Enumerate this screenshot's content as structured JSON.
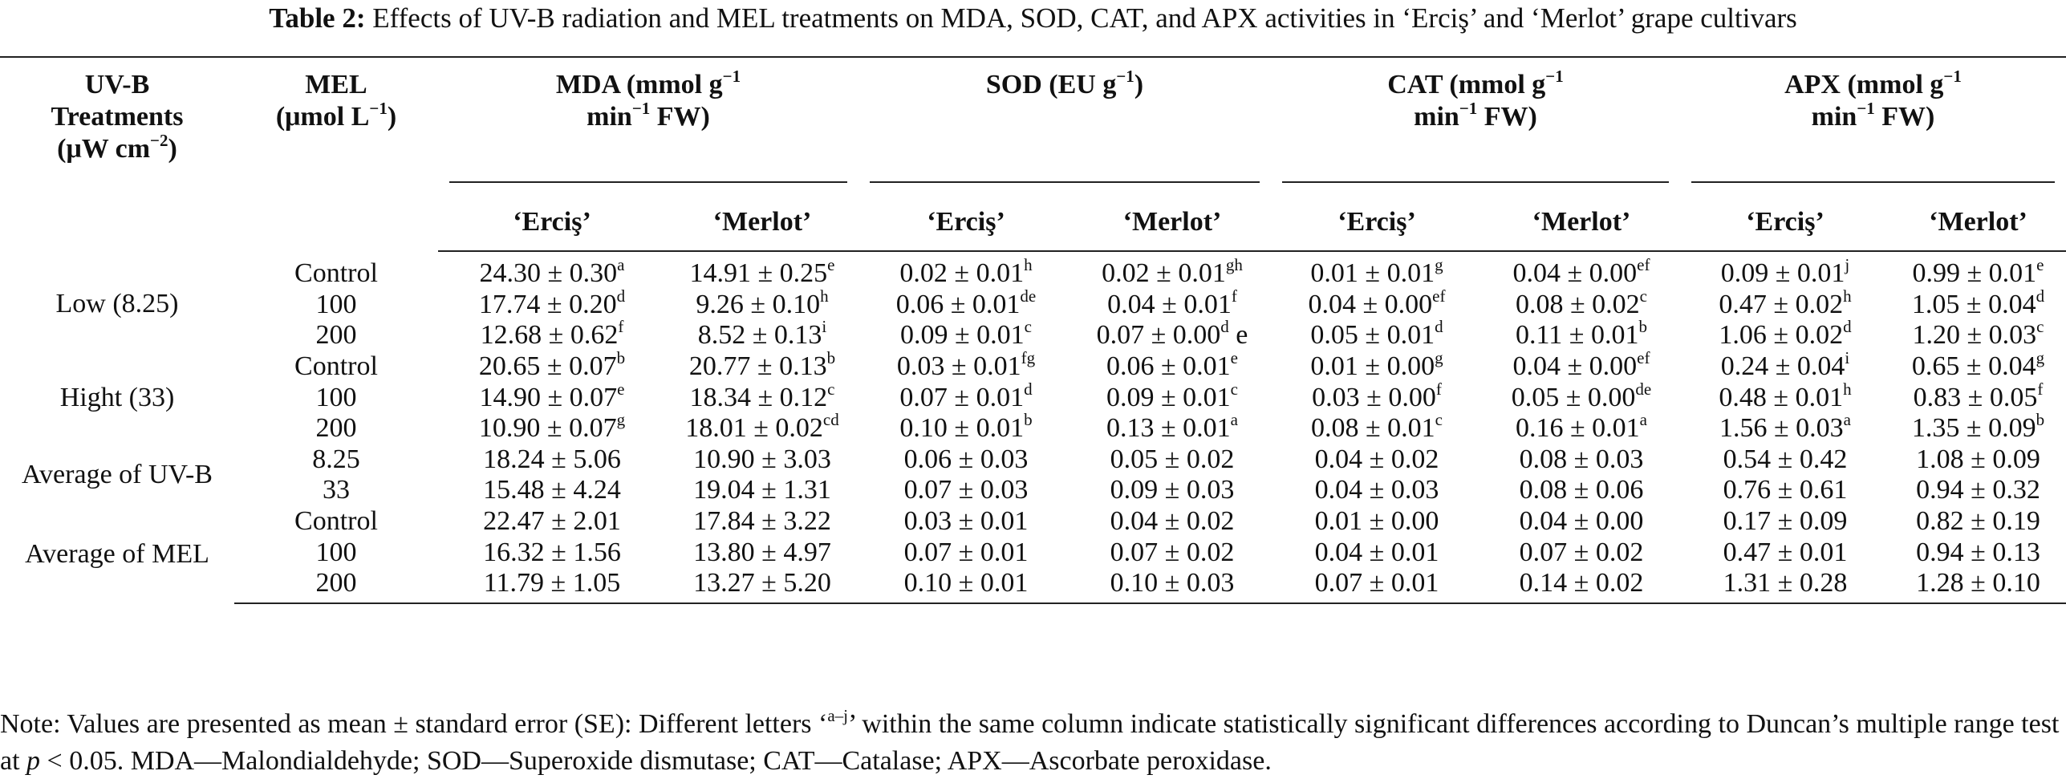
{
  "caption": {
    "label": "Table 2:",
    "text": " Effects of UV-B radiation and MEL treatments on MDA, SOD, CAT, and APX activities in ‘Erciş’ and ‘Merlot’ grape cultivars"
  },
  "headers": {
    "uvb_l1": "UV-B",
    "uvb_l2": "Treatments",
    "uvb_l3": "(μW cm",
    "uvb_sup": "−2",
    "uvb_l3_end": ")",
    "mel_l1": "MEL",
    "mel_l2": "(μmol L",
    "mel_sup": "−1",
    "mel_l2_end": ")",
    "mda_l1": "MDA (mmol g",
    "mda_sup1": "−1",
    "mda_l2": "min",
    "mda_sup2": "−1",
    "mda_l2_end": " FW)",
    "sod_l1": "SOD (EU g",
    "sod_sup1": "−1",
    "sod_l1_end": ")",
    "cat_l1": "CAT (mmol g",
    "cat_sup1": "−1",
    "cat_l2": "min",
    "cat_sup2": "−1",
    "cat_l2_end": " FW)",
    "apx_l1": "APX (mmol g",
    "apx_sup1": "−1",
    "apx_l2": "min",
    "apx_sup2": "−1",
    "apx_l2_end": " FW)",
    "cultivar_a": "‘Erciş’",
    "cultivar_b": "‘Merlot’"
  },
  "groups": {
    "low": "Low (8.25)",
    "high": "Hight (33)",
    "avg_uvb": "Average of UV-B",
    "avg_mel": "Average of MEL"
  },
  "rows": [
    {
      "mel": "Control",
      "c": [
        [
          "24.30 ± 0.30",
          "a"
        ],
        [
          "14.91 ± 0.25",
          "e"
        ],
        [
          "0.02 ± 0.01",
          "h"
        ],
        [
          "0.02 ± 0.01",
          "gh"
        ],
        [
          "0.01 ± 0.01",
          "g"
        ],
        [
          "0.04 ± 0.00",
          "ef"
        ],
        [
          "0.09 ± 0.01",
          "j"
        ],
        [
          "0.99 ± 0.01",
          "e"
        ]
      ]
    },
    {
      "mel": "100",
      "c": [
        [
          "17.74 ± 0.20",
          "d"
        ],
        [
          "9.26 ± 0.10",
          "h"
        ],
        [
          "0.06 ± 0.01",
          "de"
        ],
        [
          "0.04 ± 0.01",
          "f"
        ],
        [
          "0.04 ± 0.00",
          "ef"
        ],
        [
          "0.08 ± 0.02",
          "c"
        ],
        [
          "0.47 ± 0.02",
          "h"
        ],
        [
          "1.05 ± 0.04",
          "d"
        ]
      ]
    },
    {
      "mel": "200",
      "c": [
        [
          "12.68 ± 0.62",
          "f"
        ],
        [
          "8.52 ± 0.13",
          "i"
        ],
        [
          "0.09 ± 0.01",
          "c"
        ],
        [
          "0.07 ± 0.00",
          "d"
        ],
        [
          "0.05 ± 0.01",
          "d"
        ],
        [
          "0.11 ± 0.01",
          "b"
        ],
        [
          "1.06 ± 0.02",
          "d"
        ],
        [
          "1.20 ± 0.03",
          "c"
        ]
      ]
    },
    {
      "mel": "Control",
      "c": [
        [
          "20.65 ± 0.07",
          "b"
        ],
        [
          "20.77 ± 0.13",
          "b"
        ],
        [
          "0.03 ± 0.01",
          "fg"
        ],
        [
          "0.06 ± 0.01",
          "e"
        ],
        [
          "0.01 ± 0.00",
          "g"
        ],
        [
          "0.04 ± 0.00",
          "ef"
        ],
        [
          "0.24 ± 0.04",
          "i"
        ],
        [
          "0.65 ± 0.04",
          "g"
        ]
      ]
    },
    {
      "mel": "100",
      "c": [
        [
          "14.90 ± 0.07",
          "e"
        ],
        [
          "18.34 ± 0.12",
          "c"
        ],
        [
          "0.07 ± 0.01",
          "d"
        ],
        [
          "0.09 ± 0.01",
          "c"
        ],
        [
          "0.03 ± 0.00",
          "f"
        ],
        [
          "0.05 ± 0.00",
          "de"
        ],
        [
          "0.48 ± 0.01",
          "h"
        ],
        [
          "0.83 ± 0.05",
          "f"
        ]
      ]
    },
    {
      "mel": "200",
      "c": [
        [
          "10.90 ± 0.07",
          "g"
        ],
        [
          "18.01 ± 0.02",
          "cd"
        ],
        [
          "0.10 ± 0.01",
          "b"
        ],
        [
          "0.13 ± 0.01",
          "a"
        ],
        [
          "0.08 ± 0.01",
          "c"
        ],
        [
          "0.16 ± 0.01",
          "a"
        ],
        [
          "1.56 ± 0.03",
          "a"
        ],
        [
          "1.35 ± 0.09",
          "b"
        ]
      ]
    },
    {
      "mel": "8.25",
      "c": [
        [
          "18.24 ± 5.06",
          ""
        ],
        [
          "10.90 ± 3.03",
          ""
        ],
        [
          "0.06 ± 0.03",
          ""
        ],
        [
          "0.05 ± 0.02",
          ""
        ],
        [
          "0.04 ± 0.02",
          ""
        ],
        [
          "0.08 ± 0.03",
          ""
        ],
        [
          "0.54 ± 0.42",
          ""
        ],
        [
          "1.08 ± 0.09",
          ""
        ]
      ]
    },
    {
      "mel": "33",
      "c": [
        [
          "15.48 ± 4.24",
          ""
        ],
        [
          "19.04 ± 1.31",
          ""
        ],
        [
          "0.07 ± 0.03",
          ""
        ],
        [
          "0.09 ± 0.03",
          ""
        ],
        [
          "0.04 ± 0.03",
          ""
        ],
        [
          "0.08 ± 0.06",
          ""
        ],
        [
          "0.76 ± 0.61",
          ""
        ],
        [
          "0.94 ± 0.32",
          ""
        ]
      ]
    },
    {
      "mel": "Control",
      "c": [
        [
          "22.47 ± 2.01",
          ""
        ],
        [
          "17.84 ± 3.22",
          ""
        ],
        [
          "0.03 ± 0.01",
          ""
        ],
        [
          "0.04 ± 0.02",
          ""
        ],
        [
          "0.01 ± 0.00",
          ""
        ],
        [
          "0.04 ± 0.00",
          ""
        ],
        [
          "0.17 ± 0.09",
          ""
        ],
        [
          "0.82 ± 0.19",
          ""
        ]
      ]
    },
    {
      "mel": "100",
      "c": [
        [
          "16.32 ± 1.56",
          ""
        ],
        [
          "13.80 ± 4.97",
          ""
        ],
        [
          "0.07 ± 0.01",
          ""
        ],
        [
          "0.07 ± 0.02",
          ""
        ],
        [
          "0.04 ± 0.01",
          ""
        ],
        [
          "0.07 ± 0.02",
          ""
        ],
        [
          "0.47 ± 0.01",
          ""
        ],
        [
          "0.94 ± 0.13",
          ""
        ]
      ]
    },
    {
      "mel": "200",
      "c": [
        [
          "11.79 ± 1.05",
          ""
        ],
        [
          "13.27 ± 5.20",
          ""
        ],
        [
          "0.10 ± 0.01",
          ""
        ],
        [
          "0.10 ± 0.03",
          ""
        ],
        [
          "0.07 ± 0.01",
          ""
        ],
        [
          "0.14 ± 0.02",
          ""
        ],
        [
          "1.31 ± 0.28",
          ""
        ],
        [
          "1.28 ± 0.10",
          ""
        ]
      ]
    }
  ],
  "row2_extra": " e",
  "note": {
    "part1": "Note: Values are presented as mean ± standard error (SE): Different letters ‘",
    "letters": "a–j",
    "part2": "’ within the same column indicate statistically significant differences according to Duncan’s multiple range test at ",
    "p": "p",
    "part3": " < 0.05. MDA—Malondialdehyde; SOD—Superoxide dismutase; CAT—Catalase; APX—Ascorbate peroxidase."
  }
}
